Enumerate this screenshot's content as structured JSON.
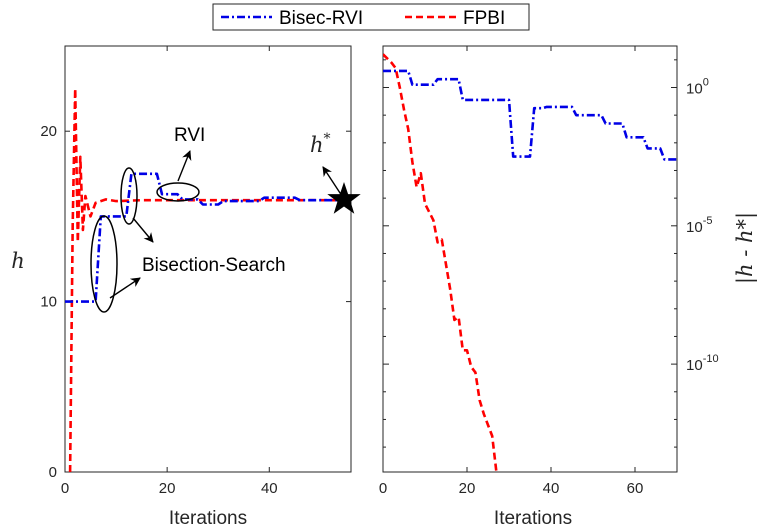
{
  "legend": {
    "entries": [
      {
        "name": "Bisec-RVI",
        "color": "#0000e6",
        "dash": "dashdot"
      },
      {
        "name": "FPBI",
        "color": "#ff0000",
        "dash": "dashed"
      }
    ]
  },
  "chart_data": [
    {
      "type": "line",
      "panel": "left",
      "xlabel": "Iterations",
      "ylabel": "h",
      "xlim": [
        0,
        56
      ],
      "ylim": [
        0,
        25
      ],
      "xticks": [
        "0",
        "20",
        "40"
      ],
      "yticks": [
        "0",
        "10",
        "20"
      ],
      "series": [
        {
          "name": "Bisec-RVI",
          "color": "#0000e6",
          "x": [
            0,
            6,
            7,
            12,
            13,
            18,
            19,
            22,
            23,
            26,
            27,
            30,
            31,
            38,
            39,
            45,
            46,
            56
          ],
          "y": [
            10,
            10,
            15,
            15,
            17.5,
            17.5,
            16.3,
            16.3,
            16.0,
            16.0,
            15.7,
            15.7,
            15.9,
            15.9,
            16.1,
            16.1,
            15.95,
            15.95
          ]
        },
        {
          "name": "FPBI",
          "color": "#ff0000",
          "x": [
            1,
            1.5,
            2,
            2.5,
            3,
            3.5,
            4,
            5,
            6,
            8,
            10,
            15,
            25,
            56
          ],
          "y": [
            0,
            14.5,
            22.5,
            13.5,
            18.5,
            14.2,
            16.2,
            15.0,
            15.8,
            16.0,
            15.9,
            15.95,
            15.95,
            15.95
          ]
        }
      ],
      "annotations": [
        {
          "text": "RVI"
        },
        {
          "text": "Bisection-Search"
        },
        {
          "text": "h",
          "superscript": "*"
        }
      ]
    },
    {
      "type": "line",
      "panel": "right",
      "xlabel": "Iterations",
      "ylabel": "|h - h*|",
      "yscale": "log",
      "xlim": [
        0,
        70
      ],
      "ylim_log10": [
        -13.9,
        1.5
      ],
      "xticks": [
        "0",
        "20",
        "40",
        "60"
      ],
      "yticks": [
        {
          "base": "10",
          "exp": "0",
          "value": 0
        },
        {
          "base": "10",
          "exp": "-5",
          "value": -5
        },
        {
          "base": "10",
          "exp": "-10",
          "value": -10
        }
      ],
      "series": [
        {
          "name": "Bisec-RVI",
          "color": "#0000e6",
          "x": [
            0,
            6,
            7,
            12,
            13,
            18,
            19,
            30,
            31,
            35,
            36,
            38,
            39,
            45,
            46,
            52,
            53,
            57,
            58,
            62,
            63,
            66,
            67,
            70
          ],
          "y_log10": [
            0.6,
            0.6,
            0.1,
            0.1,
            0.3,
            0.3,
            -0.45,
            -0.45,
            -2.5,
            -2.5,
            -0.75,
            -0.75,
            -0.7,
            -0.7,
            -1.0,
            -1.0,
            -1.3,
            -1.3,
            -1.8,
            -1.8,
            -2.2,
            -2.2,
            -2.6,
            -2.6
          ]
        },
        {
          "name": "FPBI",
          "color": "#ff0000",
          "x": [
            0,
            2,
            3,
            4,
            5,
            6,
            7,
            8,
            9,
            10,
            11,
            12,
            13,
            14,
            15,
            16,
            17,
            18,
            19,
            20,
            21,
            22,
            23,
            24,
            25,
            26,
            27
          ],
          "y_log10": [
            1.2,
            0.9,
            0.7,
            0.0,
            -0.8,
            -1.5,
            -2.7,
            -3.6,
            -3.1,
            -4.2,
            -4.5,
            -4.8,
            -5.6,
            -5.5,
            -6.4,
            -7.3,
            -8.4,
            -8.3,
            -9.5,
            -9.5,
            -10.1,
            -10.3,
            -11.3,
            -11.8,
            -12.2,
            -12.6,
            -13.9
          ]
        }
      ]
    }
  ]
}
